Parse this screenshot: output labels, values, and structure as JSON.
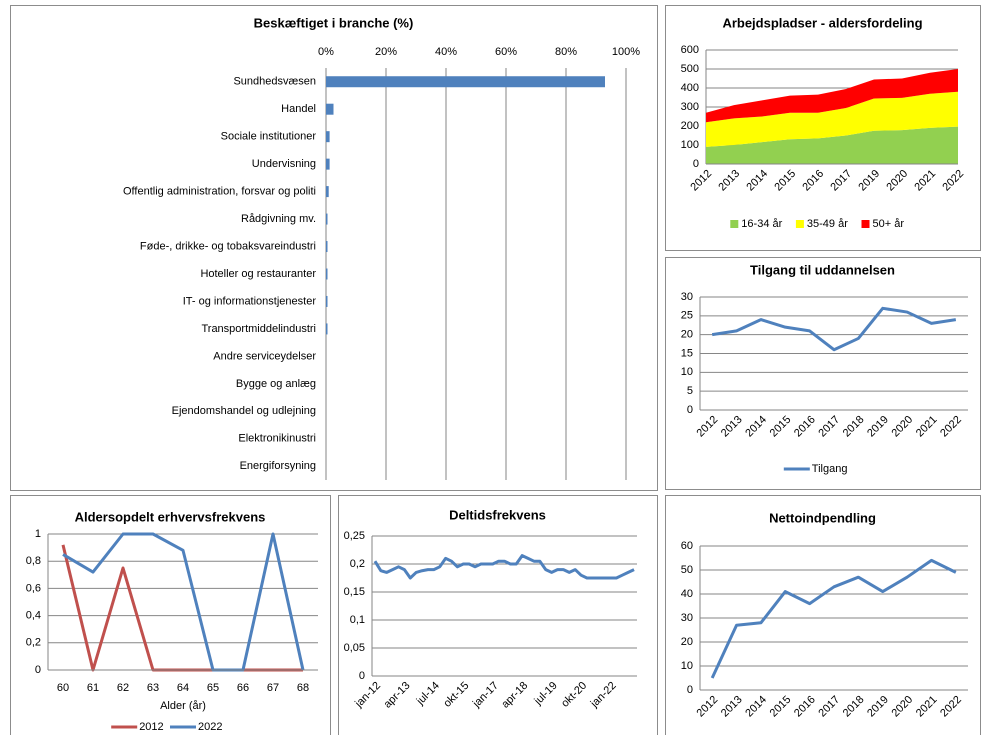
{
  "chart_data": [
    {
      "type": "hbar",
      "title": "Beskæftiget i branche (%)",
      "categories": [
        "Sundhedsvæsen",
        "Handel",
        "Sociale institutioner",
        "Undervisning",
        "Offentlig administration, forsvar og politi",
        "Rådgivning mv.",
        "Føde-, drikke- og tobaksvareindustri",
        "Hoteller og restauranter",
        "IT- og informationstjenester",
        "Transportmiddelindustri",
        "Andre serviceydelser",
        "Bygge og anlæg",
        "Ejendomshandel og udlejning",
        "Elektronikinustri",
        "Energiforsyning"
      ],
      "values": [
        93,
        2.5,
        1.2,
        1.2,
        0.9,
        0.5,
        0.5,
        0.5,
        0.5,
        0.5,
        0,
        0,
        0,
        0,
        0
      ],
      "color": "#4f81bd",
      "xlim": [
        0,
        100
      ],
      "xticks": [
        {
          "value": 0,
          "label": "0%"
        },
        {
          "value": 20,
          "label": "20%"
        },
        {
          "value": 40,
          "label": "40%"
        },
        {
          "value": 60,
          "label": "60%"
        },
        {
          "value": 80,
          "label": "80%"
        },
        {
          "value": 100,
          "label": "100%"
        }
      ],
      "grid": true
    },
    {
      "type": "area",
      "title": "Arbejdspladser - aldersfordeling",
      "categories": [
        "2012",
        "2013",
        "2014",
        "2015",
        "2016",
        "2017",
        "2019",
        "2020",
        "2021",
        "2022"
      ],
      "series": [
        {
          "name": "16-34 år",
          "color": "#92d050",
          "values": [
            90,
            100,
            115,
            130,
            135,
            150,
            175,
            178,
            190,
            197
          ]
        },
        {
          "name": "35-49 år",
          "color": "#ffff00",
          "values": [
            130,
            140,
            135,
            140,
            135,
            145,
            170,
            170,
            180,
            183
          ]
        },
        {
          "name": "50+ år",
          "color": "#ff0000",
          "values": [
            50,
            70,
            85,
            90,
            95,
            100,
            100,
            102,
            110,
            120
          ]
        }
      ],
      "ylim": [
        0,
        600
      ],
      "yticks": [
        0,
        100,
        200,
        300,
        400,
        500,
        600
      ],
      "grid": true
    },
    {
      "type": "line",
      "title": "Tilgang til uddannelsen",
      "categories": [
        "2012",
        "2013",
        "2014",
        "2015",
        "2016",
        "2017",
        "2018",
        "2019",
        "2020",
        "2021",
        "2022"
      ],
      "series": [
        {
          "name": "Tilgang",
          "color": "#4f81bd",
          "values": [
            20,
            21,
            24,
            22,
            21,
            16,
            19,
            27,
            26,
            23,
            24
          ]
        }
      ],
      "ylim": [
        0,
        30
      ],
      "yticks": [
        0,
        5,
        10,
        15,
        20,
        25,
        30
      ],
      "grid": true
    },
    {
      "type": "line",
      "title": "Aldersopdelt erhvervsfrekvens",
      "xlabel": "Alder (år)",
      "categories": [
        "60",
        "61",
        "62",
        "63",
        "64",
        "65",
        "66",
        "67",
        "68"
      ],
      "series": [
        {
          "name": "2012",
          "color": "#c0504d",
          "values": [
            0.92,
            0,
            0.75,
            0,
            0,
            0,
            0,
            0,
            0
          ]
        },
        {
          "name": "2022",
          "color": "#4f81bd",
          "values": [
            0.85,
            0.72,
            1,
            1,
            0.88,
            0,
            0,
            1,
            0
          ]
        }
      ],
      "ylim": [
        0,
        1
      ],
      "yticks": [
        0,
        {
          "value": 0.2,
          "label": "0,2"
        },
        {
          "value": 0.4,
          "label": "0,4"
        },
        {
          "value": 0.6,
          "label": "0,6"
        },
        {
          "value": 0.8,
          "label": "0,8"
        },
        1
      ],
      "grid": true
    },
    {
      "type": "line",
      "title": "Deltidsfrekvens",
      "categories": [
        "jan-12",
        null,
        null,
        null,
        null,
        "apr-13",
        null,
        null,
        null,
        null,
        "jul-14",
        null,
        null,
        null,
        null,
        "okt-15",
        null,
        null,
        null,
        null,
        "jan-17",
        null,
        null,
        null,
        null,
        "apr-18",
        null,
        null,
        null,
        null,
        "jul-19",
        null,
        null,
        null,
        null,
        "okt-20",
        null,
        null,
        null,
        null,
        "jan-22",
        null,
        null,
        null,
        null
      ],
      "values": [
        0.205,
        0.188,
        0.185,
        0.19,
        0.195,
        0.19,
        0.175,
        0.185,
        0.188,
        0.19,
        0.19,
        0.195,
        0.21,
        0.205,
        0.195,
        0.2,
        0.2,
        0.195,
        0.2,
        0.2,
        0.2,
        0.205,
        0.205,
        0.2,
        0.2,
        0.215,
        0.21,
        0.205,
        0.205,
        0.19,
        0.185,
        0.19,
        0.19,
        0.185,
        0.19,
        0.18,
        0.175,
        0.175,
        0.175,
        0.175,
        0.175,
        0.175,
        0.18,
        0.185,
        0.19
      ],
      "color": "#4f81bd",
      "ylim": [
        0,
        0.25
      ],
      "yticks": [
        0,
        {
          "value": 0.05,
          "label": "0,05"
        },
        {
          "value": 0.1,
          "label": "0,1"
        },
        {
          "value": 0.15,
          "label": "0,15"
        },
        {
          "value": 0.2,
          "label": "0,2"
        },
        {
          "value": 0.25,
          "label": "0,25"
        }
      ],
      "grid": true
    },
    {
      "type": "line",
      "title": "Nettoindpendling",
      "categories": [
        "2012",
        "2013",
        "2014",
        "2015",
        "2016",
        "2017",
        "2018",
        "2019",
        "2020",
        "2021",
        "2022"
      ],
      "values": [
        5,
        27,
        28,
        41,
        36,
        43,
        47,
        41,
        47,
        54,
        49
      ],
      "color": "#4f81bd",
      "ylim": [
        0,
        60
      ],
      "yticks": [
        0,
        10,
        20,
        30,
        40,
        50,
        60
      ],
      "grid": true
    }
  ]
}
